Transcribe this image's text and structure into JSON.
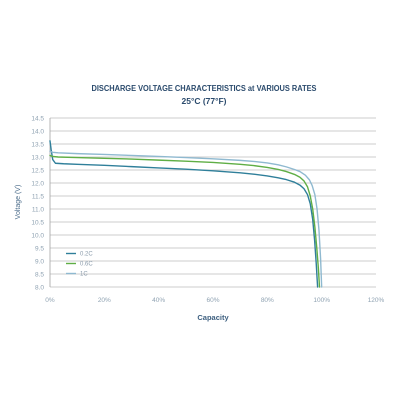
{
  "chart_data": {
    "type": "line",
    "title": "DISCHARGE VOLTAGE CHARACTERISTICS at VARIOUS RATES",
    "subtitle": "25°C (77°F)",
    "xlabel": "Capacity",
    "ylabel": "Voltage (V)",
    "xlim": [
      0,
      120
    ],
    "ylim": [
      8.0,
      14.5
    ],
    "grid": true,
    "legend": "bottom-left",
    "x_ticks": [
      {
        "value": 0,
        "label": "0%"
      },
      {
        "value": 20,
        "label": "20%"
      },
      {
        "value": 40,
        "label": "40%"
      },
      {
        "value": 60,
        "label": "60%"
      },
      {
        "value": 80,
        "label": "80%"
      },
      {
        "value": 100,
        "label": "100%"
      },
      {
        "value": 120,
        "label": "120%"
      }
    ],
    "y_ticks": [
      {
        "value": 14.5,
        "label": "14.5"
      },
      {
        "value": 14.0,
        "label": "14.0"
      },
      {
        "value": 13.5,
        "label": "13.5"
      },
      {
        "value": 13.0,
        "label": "13.0"
      },
      {
        "value": 12.5,
        "label": "12.5"
      },
      {
        "value": 12.0,
        "label": "12.0"
      },
      {
        "value": 11.5,
        "label": "11.5"
      },
      {
        "value": 11.0,
        "label": "11.0"
      },
      {
        "value": 10.5,
        "label": "10.5"
      },
      {
        "value": 10.0,
        "label": "10.0"
      },
      {
        "value": 9.5,
        "label": "9.5"
      },
      {
        "value": 9.0,
        "label": "9.0"
      },
      {
        "value": 8.5,
        "label": "8.5"
      },
      {
        "value": 8.0,
        "label": "8.0"
      }
    ],
    "series": [
      {
        "name": "0.2C",
        "color": "#2f7f9a",
        "x": [
          0,
          0.4,
          1,
          2,
          5,
          10,
          20,
          30,
          40,
          50,
          60,
          70,
          75,
          80,
          84,
          87,
          90,
          92,
          93.5,
          94.8,
          95.8,
          96.7,
          97.4,
          98,
          98.5
        ],
        "y": [
          13.62,
          13.3,
          12.9,
          12.76,
          12.74,
          12.72,
          12.68,
          12.63,
          12.58,
          12.53,
          12.47,
          12.39,
          12.34,
          12.27,
          12.2,
          12.13,
          12.03,
          11.92,
          11.78,
          11.55,
          11.2,
          10.6,
          9.8,
          8.9,
          8.0
        ]
      },
      {
        "name": "0.6C",
        "color": "#5fae45",
        "x": [
          0,
          1,
          3,
          10,
          20,
          30,
          40,
          50,
          60,
          70,
          75,
          80,
          84,
          87,
          90,
          92,
          93.5,
          94.8,
          95.8,
          96.7,
          97.5,
          98.2,
          98.8,
          99.2
        ],
        "y": [
          13.06,
          13.02,
          13.0,
          12.98,
          12.95,
          12.92,
          12.88,
          12.84,
          12.79,
          12.72,
          12.67,
          12.6,
          12.52,
          12.44,
          12.33,
          12.22,
          12.08,
          11.85,
          11.5,
          11.0,
          10.3,
          9.5,
          8.7,
          8.0
        ]
      },
      {
        "name": "1C",
        "color": "#8fb9d0",
        "x": [
          0,
          1,
          3,
          10,
          20,
          30,
          40,
          50,
          60,
          70,
          75,
          80,
          84,
          87,
          90,
          92,
          94,
          95.5,
          96.5,
          97.5,
          98.3,
          99,
          99.6,
          100
        ],
        "y": [
          13.22,
          13.18,
          13.16,
          13.13,
          13.1,
          13.06,
          13.02,
          12.98,
          12.93,
          12.87,
          12.83,
          12.77,
          12.7,
          12.62,
          12.52,
          12.44,
          12.3,
          12.12,
          11.9,
          11.55,
          11.0,
          10.2,
          9.1,
          8.0
        ]
      }
    ]
  }
}
